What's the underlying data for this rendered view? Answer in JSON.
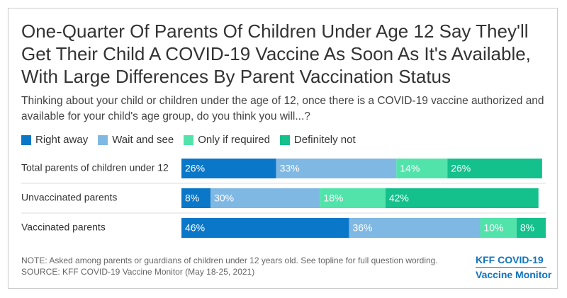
{
  "chart_data": {
    "type": "stacked-bar-horizontal",
    "title": "One-Quarter Of Parents Of Children Under Age 12 Say They'll Get Their Child A COVID-19 Vaccine As Soon As It's Available, With Large Differences By Parent Vaccination Status",
    "subtitle": "Thinking about your child or children under the age of 12, once there is a COVID-19 vaccine authorized and available for your child's age group, do you think you will...?",
    "categories": [
      "Total parents of children under 12",
      "Unvaccinated parents",
      "Vaccinated parents"
    ],
    "series": [
      {
        "name": "Right away",
        "color": "#0a77c8",
        "values": [
          26,
          8,
          46
        ],
        "value_labels": [
          "26%",
          "8%",
          "46%"
        ]
      },
      {
        "name": "Wait and see",
        "color": "#80b8e4",
        "values": [
          33,
          30,
          36
        ],
        "value_labels": [
          "33%",
          "30%",
          "36%"
        ]
      },
      {
        "name": "Only if required",
        "color": "#52e3ab",
        "values": [
          14,
          18,
          10
        ],
        "value_labels": [
          "14%",
          "18%",
          "10%"
        ]
      },
      {
        "name": "Definitely not",
        "color": "#14c08b",
        "values": [
          26,
          42,
          8
        ],
        "value_labels": [
          "26%",
          "42%",
          "8%"
        ]
      }
    ],
    "xlim": [
      0,
      100
    ],
    "note": "NOTE: Asked among parents or guardians of children under 12 years old. See topline for full question wording.",
    "source": "SOURCE: KFF COVID-19 Vaccine Monitor (May 18-25, 2021)",
    "branding": [
      "KFF COVID-19",
      "Vaccine Monitor"
    ]
  }
}
